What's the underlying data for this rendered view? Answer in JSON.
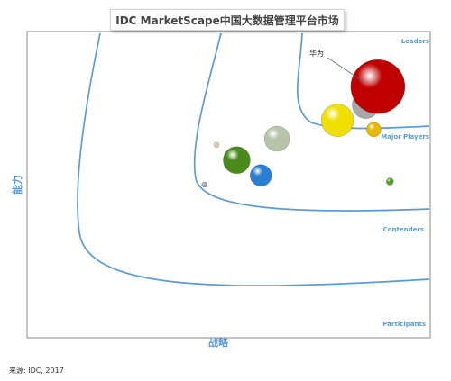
{
  "chart_data": {
    "type": "scatter",
    "title": "IDC MarketScape中国大数据管理平台市场",
    "xlabel": "战略",
    "ylabel": "能力",
    "grid": false,
    "regions": [
      "Leaders",
      "Major Players",
      "Contenders",
      "Participants"
    ],
    "annotations": [
      {
        "label": "华为"
      }
    ],
    "points": [
      {
        "color": "#c00000",
        "x": 0.87,
        "y": 0.82,
        "size": 30,
        "label": "华为"
      },
      {
        "color": "#a8a8a8",
        "x": 0.84,
        "y": 0.76,
        "size": 15
      },
      {
        "color": "#f0e000",
        "x": 0.77,
        "y": 0.71,
        "size": 18
      },
      {
        "color": "#e8b800",
        "x": 0.86,
        "y": 0.68,
        "size": 8
      },
      {
        "color": "#b8c4a8",
        "x": 0.62,
        "y": 0.65,
        "size": 14
      },
      {
        "color": "#4a8a1a",
        "x": 0.52,
        "y": 0.58,
        "size": 15
      },
      {
        "color": "#2a7fd0",
        "x": 0.58,
        "y": 0.53,
        "size": 12
      },
      {
        "color": "#d8ccaa",
        "x": 0.47,
        "y": 0.63,
        "size": 3
      },
      {
        "color": "#a0a0b0",
        "x": 0.44,
        "y": 0.5,
        "size": 3
      },
      {
        "color": "#5aa02a",
        "x": 0.9,
        "y": 0.51,
        "size": 4
      }
    ]
  },
  "source": "来源: IDC, 2017"
}
